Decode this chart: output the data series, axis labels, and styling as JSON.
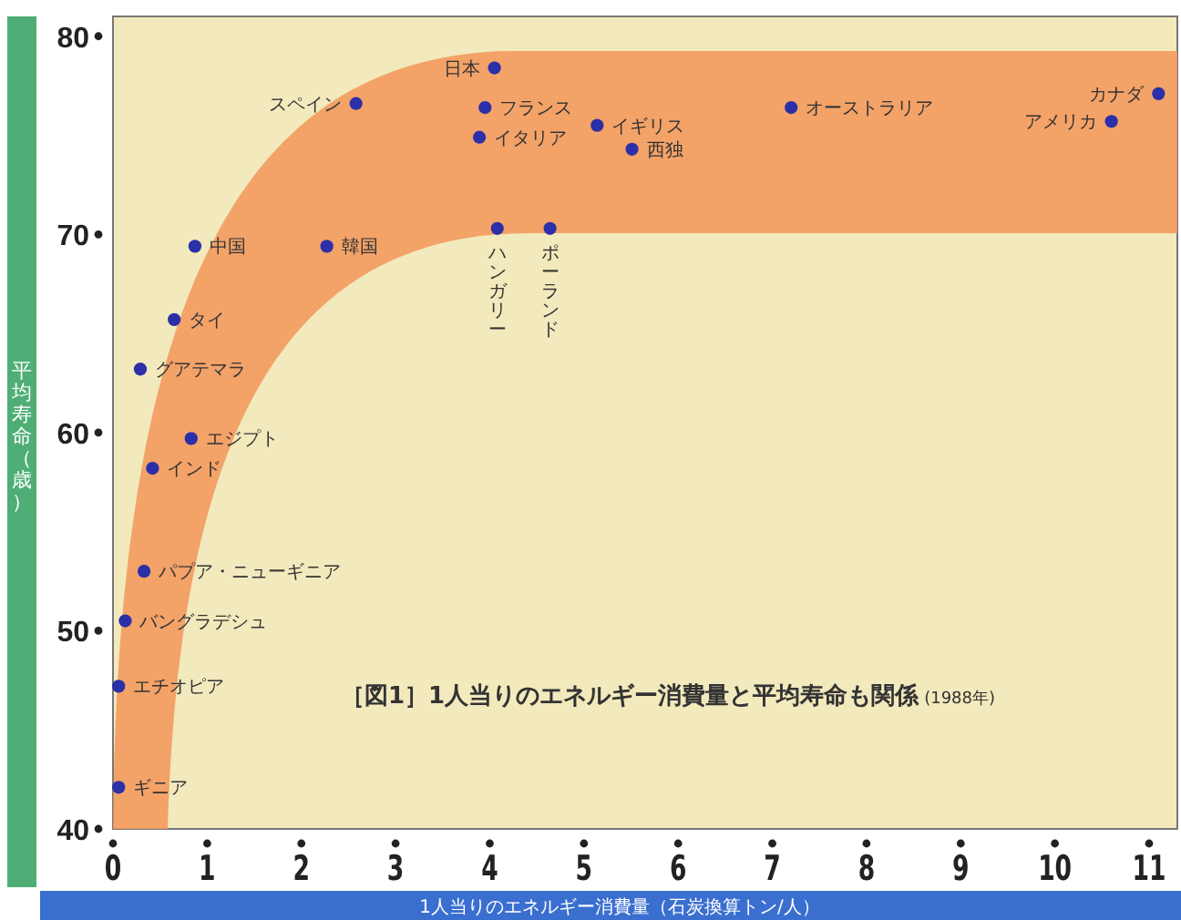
{
  "chart_data": {
    "type": "scatter",
    "title": "［図1］1人当りのエネルギー消費量と平均寿命も関係",
    "subtitle": "(1988年)",
    "xlabel": "1人当りのエネルギー消費量（石炭換算トン/人）",
    "ylabel": "平均寿命（歳）",
    "x": [
      0.06,
      0.06,
      0.13,
      0.33,
      0.42,
      0.83,
      0.29,
      0.65,
      0.87,
      2.27,
      2.58,
      4.05,
      3.95,
      3.89,
      4.08,
      4.64,
      5.14,
      5.51,
      7.2,
      10.6,
      11.1
    ],
    "series": [
      {
        "color": "#2b2fa8",
        "values": [
          42.1,
          47.2,
          50.5,
          53.0,
          58.2,
          59.7,
          63.2,
          65.7,
          69.4,
          69.4,
          76.6,
          78.4,
          76.4,
          74.9,
          70.3,
          70.3,
          75.5,
          74.3,
          76.4,
          75.7,
          77.1
        ]
      }
    ],
    "annotations": [
      {
        "text": "ギニア",
        "x": 0.06,
        "y": 42.1
      },
      {
        "text": "エチオピア",
        "x": 0.06,
        "y": 47.2
      },
      {
        "text": "バングラデシュ",
        "x": 0.13,
        "y": 50.5
      },
      {
        "text": "パプア・ニューギニア",
        "x": 0.33,
        "y": 53.0
      },
      {
        "text": "インド",
        "x": 0.42,
        "y": 58.2
      },
      {
        "text": "エジプト",
        "x": 0.83,
        "y": 59.7
      },
      {
        "text": "グアテマラ",
        "x": 0.29,
        "y": 63.2
      },
      {
        "text": "タイ",
        "x": 0.65,
        "y": 65.7
      },
      {
        "text": "中国",
        "x": 0.87,
        "y": 69.4
      },
      {
        "text": "韓国",
        "x": 2.27,
        "y": 69.4
      },
      {
        "text": "スペイン",
        "x": 2.58,
        "y": 76.6
      },
      {
        "text": "日本",
        "x": 4.05,
        "y": 78.4
      },
      {
        "text": "フランス",
        "x": 3.95,
        "y": 76.4
      },
      {
        "text": "イタリア",
        "x": 3.89,
        "y": 74.9
      },
      {
        "text": "ハンガリー",
        "x": 4.08,
        "y": 70.3
      },
      {
        "text": "ポーランド",
        "x": 4.64,
        "y": 70.3
      },
      {
        "text": "イギリス",
        "x": 5.14,
        "y": 75.5
      },
      {
        "text": "西独",
        "x": 5.51,
        "y": 74.3
      },
      {
        "text": "オーストラリア",
        "x": 7.2,
        "y": 76.4
      },
      {
        "text": "アメリカ",
        "x": 10.6,
        "y": 75.7
      },
      {
        "text": "カナダ",
        "x": 11.1,
        "y": 77.1
      }
    ],
    "xlim": [
      0,
      11.3
    ],
    "ylim": [
      40,
      81
    ],
    "xticks": [
      0,
      1,
      2,
      3,
      4,
      5,
      6,
      7,
      8,
      9,
      10,
      11
    ],
    "yticks": [
      40,
      50,
      60,
      70,
      80
    ],
    "marker": "circle",
    "grid": false
  }
}
